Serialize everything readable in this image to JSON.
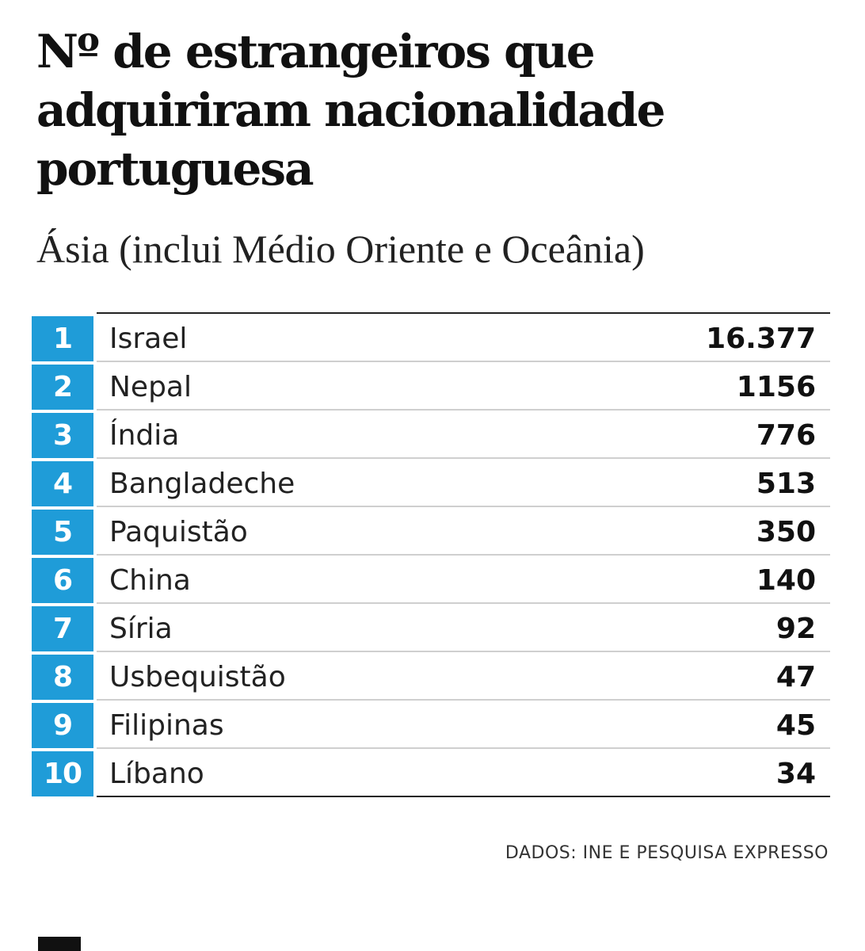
{
  "chart_data": {
    "type": "table",
    "title": "Nº de estrangeiros que adquiriram nacionalidade portuguesa",
    "subtitle": "Ásia (inclui Médio Oriente e Oceânia)",
    "columns": [
      "rank",
      "country",
      "value"
    ],
    "rows": [
      {
        "rank": "1",
        "country": "Israel",
        "value": "16.377",
        "numeric_value": 16377
      },
      {
        "rank": "2",
        "country": "Nepal",
        "value": "1156",
        "numeric_value": 1156
      },
      {
        "rank": "3",
        "country": "Índia",
        "value": "776",
        "numeric_value": 776
      },
      {
        "rank": "4",
        "country": "Bangladeche",
        "value": "513",
        "numeric_value": 513
      },
      {
        "rank": "5",
        "country": "Paquistão",
        "value": "350",
        "numeric_value": 350
      },
      {
        "rank": "6",
        "country": "China",
        "value": "140",
        "numeric_value": 140
      },
      {
        "rank": "7",
        "country": "Síria",
        "value": "92",
        "numeric_value": 92
      },
      {
        "rank": "8",
        "country": "Usbequistão",
        "value": "47",
        "numeric_value": 47
      },
      {
        "rank": "9",
        "country": "Filipinas",
        "value": "45",
        "numeric_value": 45
      },
      {
        "rank": "10",
        "country": "Líbano",
        "value": "34",
        "numeric_value": 34
      }
    ],
    "source": "DADOS: INE E PESQUISA EXPRESSO"
  },
  "colors": {
    "rank_badge": "#1f9cd8",
    "title_text": "#111111",
    "divider": "#cfcfcf",
    "rule": "#222222"
  }
}
